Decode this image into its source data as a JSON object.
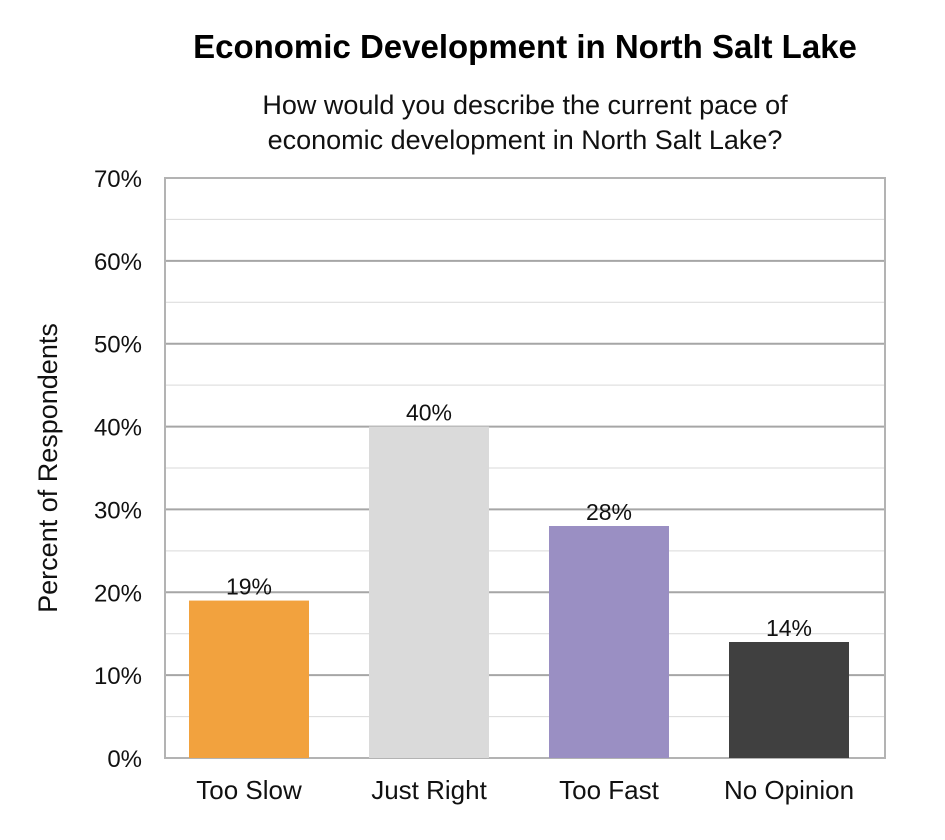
{
  "chart_data": {
    "type": "bar",
    "title": "Economic Development in North Salt Lake",
    "subtitle": "How would you describe the current pace of economic development in North Salt Lake?",
    "subtitle_lines": [
      "How would you describe the current pace of",
      "economic development in North Salt Lake?"
    ],
    "ylabel": "Percent of Respondents",
    "xlabel": "",
    "categories": [
      "Too Slow",
      "Just Right",
      "Too Fast",
      "No Opinion"
    ],
    "values": [
      19,
      40,
      28,
      14
    ],
    "data_labels": [
      "19%",
      "40%",
      "28%",
      "14%"
    ],
    "bar_colors": [
      "#F2A23E",
      "#DADADA",
      "#9A8FC3",
      "#404040"
    ],
    "ylim": [
      0,
      70
    ],
    "yticks": [
      0,
      10,
      20,
      30,
      40,
      50,
      60,
      70
    ],
    "ytick_labels": [
      "0%",
      "10%",
      "20%",
      "30%",
      "40%",
      "50%",
      "60%",
      "70%"
    ],
    "grid": true,
    "legend": "none"
  }
}
